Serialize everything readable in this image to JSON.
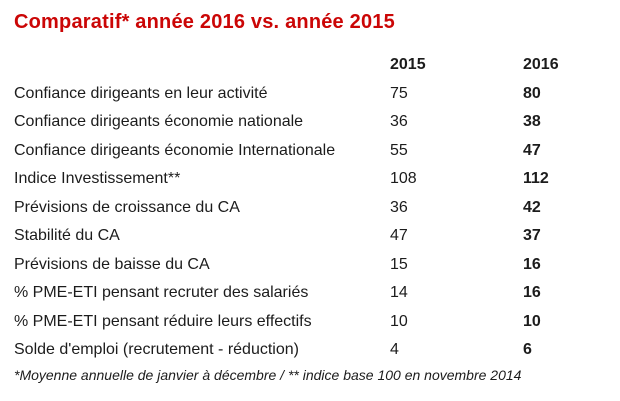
{
  "title": "Comparatif* année 2016 vs. année 2015",
  "colors": {
    "title_red": "#cb0606",
    "text": "#1c1c1c",
    "background": "#ffffff"
  },
  "table": {
    "headers": {
      "col2015": "2015",
      "col2016": "2016"
    },
    "rows": [
      {
        "label": "Confiance dirigeants en leur activité",
        "y2015": "75",
        "y2016": "80"
      },
      {
        "label": "Confiance dirigeants économie nationale",
        "y2015": "36",
        "y2016": "38"
      },
      {
        "label": "Confiance dirigeants économie Internationale",
        "y2015": "55",
        "y2016": "47"
      },
      {
        "label": "Indice Investissement**",
        "y2015": "108",
        "y2016": "112"
      },
      {
        "label": "Prévisions de croissance du CA",
        "y2015": "36",
        "y2016": "42"
      },
      {
        "label": "Stabilité du CA",
        "y2015": "47",
        "y2016": "37"
      },
      {
        "label": "Prévisions de baisse du CA",
        "y2015": "15",
        "y2016": "16"
      },
      {
        "label": "% PME-ETI pensant recruter des salariés",
        "y2015": "14",
        "y2016": "16"
      },
      {
        "label": "% PME-ETI pensant réduire leurs effectifs",
        "y2015": "10",
        "y2016": "10"
      },
      {
        "label": "Solde d'emploi (recrutement - réduction)",
        "y2015": "4",
        "y2016": "6"
      }
    ]
  },
  "footnote": "*Moyenne annuelle de janvier à décembre / ** indice base 100 en novembre 2014"
}
